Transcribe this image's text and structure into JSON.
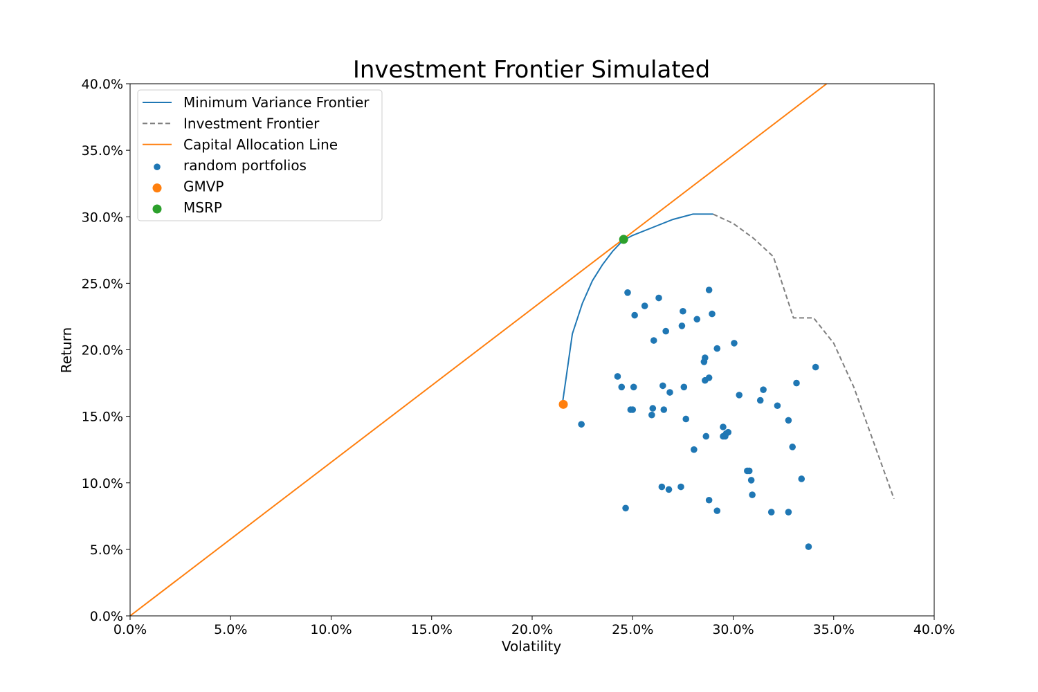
{
  "chart_data": {
    "type": "scatter",
    "title": "Investment Frontier Simulated",
    "xlabel": "Volatility",
    "ylabel": "Return",
    "xlim": [
      0.0,
      0.4
    ],
    "ylim": [
      0.0,
      0.4
    ],
    "x_ticks": [
      "0.0%",
      "5.0%",
      "10.0%",
      "15.0%",
      "20.0%",
      "25.0%",
      "30.0%",
      "35.0%",
      "40.0%"
    ],
    "y_ticks": [
      "0.0%",
      "5.0%",
      "10.0%",
      "15.0%",
      "20.0%",
      "25.0%",
      "30.0%",
      "35.0%",
      "40.0%"
    ],
    "x_tick_values": [
      0.0,
      0.05,
      0.1,
      0.15,
      0.2,
      0.25,
      0.3,
      0.35,
      0.4
    ],
    "y_tick_values": [
      0.0,
      0.05,
      0.1,
      0.15,
      0.2,
      0.25,
      0.3,
      0.35,
      0.4
    ],
    "grid": false,
    "legend_position": "top-left",
    "colors": {
      "frontier": "#1f77b4",
      "investment": "#7f7f7f",
      "cal": "#ff7f0e",
      "random": "#1f77b4",
      "gmvp": "#ff7f0e",
      "msrp": "#2ca02c"
    },
    "legend": [
      {
        "label": "Minimum Variance Frontier",
        "kind": "line",
        "color": "#1f77b4",
        "dash": false
      },
      {
        "label": "Investment Frontier",
        "kind": "line",
        "color": "#7f7f7f",
        "dash": true
      },
      {
        "label": "Capital Allocation Line",
        "kind": "line",
        "color": "#ff7f0e",
        "dash": false
      },
      {
        "label": "random portfolios",
        "kind": "dot",
        "color": "#1f77b4",
        "size": "small"
      },
      {
        "label": "GMVP",
        "kind": "dot",
        "color": "#ff7f0e",
        "size": "large"
      },
      {
        "label": "MSRP",
        "kind": "dot",
        "color": "#2ca02c",
        "size": "large"
      }
    ],
    "series": [
      {
        "name": "Minimum Variance Frontier",
        "kind": "line",
        "points": [
          [
            0.215,
            0.159
          ],
          [
            0.217,
            0.18
          ],
          [
            0.22,
            0.212
          ],
          [
            0.225,
            0.235
          ],
          [
            0.23,
            0.252
          ],
          [
            0.235,
            0.264
          ],
          [
            0.24,
            0.274
          ],
          [
            0.245,
            0.282
          ],
          [
            0.25,
            0.286
          ],
          [
            0.26,
            0.292
          ],
          [
            0.27,
            0.298
          ],
          [
            0.28,
            0.302
          ],
          [
            0.29,
            0.302
          ]
        ]
      },
      {
        "name": "Investment Frontier",
        "kind": "line",
        "points": [
          [
            0.29,
            0.302
          ],
          [
            0.3,
            0.295
          ],
          [
            0.31,
            0.284
          ],
          [
            0.32,
            0.27
          ],
          [
            0.33,
            0.224
          ],
          [
            0.34,
            0.224
          ],
          [
            0.35,
            0.205
          ],
          [
            0.36,
            0.172
          ],
          [
            0.37,
            0.13
          ],
          [
            0.38,
            0.088
          ]
        ]
      },
      {
        "name": "Capital Allocation Line",
        "kind": "line",
        "points": [
          [
            0.0,
            0.0
          ],
          [
            0.3465,
            0.4
          ]
        ]
      },
      {
        "name": "random portfolios",
        "kind": "scatter",
        "points": [
          [
            0.2245,
            0.144
          ],
          [
            0.2425,
            0.18
          ],
          [
            0.2445,
            0.172
          ],
          [
            0.2465,
            0.081
          ],
          [
            0.2475,
            0.243
          ],
          [
            0.249,
            0.155
          ],
          [
            0.25,
            0.155
          ],
          [
            0.2505,
            0.172
          ],
          [
            0.251,
            0.226
          ],
          [
            0.256,
            0.233
          ],
          [
            0.2595,
            0.151
          ],
          [
            0.26,
            0.156
          ],
          [
            0.2605,
            0.207
          ],
          [
            0.263,
            0.239
          ],
          [
            0.2645,
            0.097
          ],
          [
            0.265,
            0.173
          ],
          [
            0.2655,
            0.155
          ],
          [
            0.2665,
            0.214
          ],
          [
            0.268,
            0.095
          ],
          [
            0.2685,
            0.168
          ],
          [
            0.274,
            0.097
          ],
          [
            0.2745,
            0.218
          ],
          [
            0.275,
            0.229
          ],
          [
            0.2755,
            0.172
          ],
          [
            0.2765,
            0.148
          ],
          [
            0.2805,
            0.125
          ],
          [
            0.282,
            0.223
          ],
          [
            0.2855,
            0.191
          ],
          [
            0.286,
            0.194
          ],
          [
            0.286,
            0.177
          ],
          [
            0.2865,
            0.135
          ],
          [
            0.288,
            0.179
          ],
          [
            0.288,
            0.087
          ],
          [
            0.288,
            0.245
          ],
          [
            0.2895,
            0.227
          ],
          [
            0.292,
            0.079
          ],
          [
            0.292,
            0.201
          ],
          [
            0.295,
            0.142
          ],
          [
            0.295,
            0.135
          ],
          [
            0.296,
            0.135
          ],
          [
            0.2965,
            0.137
          ],
          [
            0.2975,
            0.138
          ],
          [
            0.3005,
            0.205
          ],
          [
            0.303,
            0.166
          ],
          [
            0.307,
            0.109
          ],
          [
            0.308,
            0.109
          ],
          [
            0.309,
            0.102
          ],
          [
            0.3095,
            0.091
          ],
          [
            0.3135,
            0.162
          ],
          [
            0.315,
            0.17
          ],
          [
            0.319,
            0.078
          ],
          [
            0.322,
            0.158
          ],
          [
            0.3275,
            0.078
          ],
          [
            0.3275,
            0.147
          ],
          [
            0.3295,
            0.127
          ],
          [
            0.3315,
            0.175
          ],
          [
            0.334,
            0.103
          ],
          [
            0.3375,
            0.052
          ],
          [
            0.341,
            0.187
          ]
        ]
      },
      {
        "name": "GMVP",
        "kind": "marker",
        "points": [
          [
            0.2155,
            0.159
          ]
        ]
      },
      {
        "name": "MSRP",
        "kind": "marker",
        "points": [
          [
            0.2455,
            0.283
          ]
        ]
      }
    ]
  }
}
